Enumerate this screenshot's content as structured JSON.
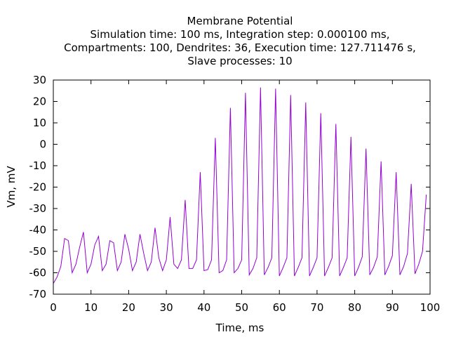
{
  "chart_data": {
    "type": "line",
    "title_lines": [
      "Membrane Potential",
      "Simulation time: 100 ms, Integration step: 0.000100 ms,",
      "Compartments: 100, Dendrites: 36, Execution time: 127.711476 s,",
      "Slave processes: 10"
    ],
    "xlabel": "Time, ms",
    "ylabel": "Vm, mV",
    "xlim": [
      0,
      100
    ],
    "ylim": [
      -70,
      30
    ],
    "x_ticks": [
      0,
      10,
      20,
      30,
      40,
      50,
      60,
      70,
      80,
      90,
      100
    ],
    "y_ticks": [
      -70,
      -60,
      -50,
      -40,
      -30,
      -20,
      -10,
      0,
      10,
      20,
      30
    ],
    "grid": false,
    "legend": "none",
    "series": [
      {
        "color": "#9400d3",
        "x": [
          0,
          1,
          2,
          3,
          4,
          5,
          6,
          7,
          8,
          9,
          10,
          11,
          12,
          13,
          14,
          15,
          16,
          17,
          18,
          19,
          20,
          21,
          22,
          23,
          24,
          25,
          26,
          27,
          28,
          29,
          30,
          31,
          32,
          33,
          34,
          35,
          36,
          37,
          38,
          39,
          40,
          41,
          42,
          43,
          44,
          45,
          46,
          47,
          48,
          49,
          50,
          51,
          52,
          53,
          54,
          55,
          56,
          57,
          58,
          59,
          60,
          61,
          62,
          63,
          64,
          65,
          66,
          67,
          68,
          69,
          70,
          71,
          72,
          73,
          74,
          75,
          76,
          77,
          78,
          79,
          80,
          81,
          82,
          83,
          84,
          85,
          86,
          87,
          88,
          89,
          90,
          91,
          92,
          93,
          94,
          95,
          96,
          97,
          98,
          99
        ],
        "y": [
          -65,
          -62,
          -57,
          -44,
          -45,
          -60,
          -56,
          -48,
          -41,
          -60,
          -56,
          -47,
          -43,
          -59,
          -56,
          -45,
          -46,
          -59,
          -55,
          -42,
          -49,
          -59,
          -55,
          -42,
          -51,
          -59,
          -55,
          -39,
          -53,
          -59,
          -54,
          -34,
          -56,
          -58,
          -54,
          -26,
          -58,
          -58,
          -54,
          -13,
          -59,
          -58.5,
          -54,
          3,
          -60,
          -59,
          -54,
          17,
          -60,
          -58,
          -54,
          24,
          -61,
          -58,
          -53,
          26.5,
          -61,
          -57.5,
          -53,
          26,
          -61.5,
          -57.5,
          -53,
          23,
          -61.5,
          -57.5,
          -53,
          19.5,
          -61.5,
          -57.5,
          -53,
          14.5,
          -61.5,
          -57.5,
          -53,
          9.5,
          -61.5,
          -57.5,
          -53,
          3.5,
          -61.5,
          -57.5,
          -52.5,
          -2,
          -61,
          -57.5,
          -52.5,
          -8,
          -61,
          -57,
          -52,
          -13,
          -61,
          -57,
          -51,
          -18.5,
          -60.5,
          -56,
          -50,
          -23.5
        ]
      }
    ]
  }
}
